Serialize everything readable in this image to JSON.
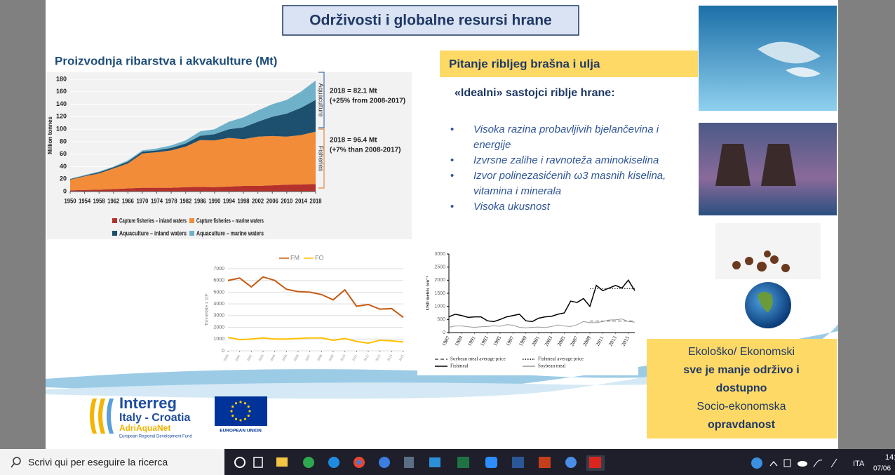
{
  "slide": {
    "title": "Održivosti i globalne resursi hrane",
    "left_heading": "Proizvodnja ribarstva i akvakulture (Mt)",
    "right_heading": "Pitanje ribljeg brašna i ulja",
    "subheading": "«Idealni» sastojci riblje hrane:",
    "bullets": [
      "Visoka razina probavljivih bjelančevina i energije",
      "Izvrsne zalihe i ravnoteža aminokiselina",
      "Izvor polinezasićenih ω3 masnih kiselina, vitamina i minerala",
      "Visoka ukusnost"
    ],
    "conclusion": [
      {
        "text": "Ekološko/ Ekonomski",
        "bold": false
      },
      {
        "text": "sve je manje održivo i",
        "bold": true
      },
      {
        "text": "dostupno",
        "bold": true
      },
      {
        "text": "Socio-ekonomska",
        "bold": false
      },
      {
        "text": "opravdanost",
        "bold": true
      }
    ],
    "logos": {
      "interreg": "Interreg",
      "program": "Italy - Croatia",
      "project": "AdriAquaNet",
      "fund": "European Regional Development Fund",
      "eu": "EUROPEAN UNION"
    }
  },
  "charts": [
    {
      "type": "stacked-area",
      "ylabel": "Million tonnes",
      "x": [
        1950,
        1954,
        1958,
        1962,
        1966,
        1970,
        1974,
        1978,
        1982,
        1986,
        1990,
        1994,
        1998,
        2002,
        2006,
        2010,
        2014,
        2018
      ],
      "xlim": [
        1950,
        2018
      ],
      "xticks": [
        1950,
        1954,
        1958,
        1962,
        1966,
        1970,
        1974,
        1978,
        1982,
        1986,
        1990,
        1994,
        1998,
        2002,
        2006,
        2010,
        2014,
        2018
      ],
      "ylim": [
        0,
        180
      ],
      "yticks": [
        0,
        20,
        40,
        60,
        80,
        100,
        120,
        140,
        160,
        180
      ],
      "grid": true,
      "series": [
        {
          "name": "Capture fisheries – inland waters",
          "color": "#b5312b",
          "values": [
            2,
            2.5,
            3,
            4,
            5,
            6,
            6,
            6,
            7,
            7.5,
            7,
            8,
            9,
            9,
            10,
            11,
            11.5,
            12
          ]
        },
        {
          "name": "Capture fisheries – marine waters",
          "color": "#f28c38",
          "values": [
            17,
            22,
            26,
            33,
            40,
            55,
            57,
            60,
            65,
            75,
            75,
            78,
            75,
            79,
            79,
            77,
            79,
            84
          ]
        },
        {
          "name": "Aquaculture – inland waters",
          "color": "#1d4f6e",
          "values": [
            1,
            1,
            2,
            2,
            3,
            3,
            3,
            4,
            5,
            7,
            10,
            14,
            19,
            24,
            31,
            37,
            44,
            51
          ]
        },
        {
          "name": "Aquaculture – marine waters",
          "color": "#6fb1c9",
          "values": [
            0.5,
            1,
            1,
            1,
            2,
            2,
            3,
            4,
            5,
            7,
            8,
            12,
            16,
            18,
            20,
            22,
            26,
            31
          ]
        }
      ],
      "annotations": [
        {
          "group": "Aquaculture",
          "color": "#3f6fb5",
          "lines": [
            "2018 = 82.1 Mt",
            "(+25% from 2008-2017)"
          ]
        },
        {
          "group": "Fisheries",
          "color": "#e8873a",
          "lines": [
            "2018 = 96.4 Mt",
            "(+7% than 2008-2017)"
          ]
        }
      ]
    },
    {
      "type": "line",
      "ylabel": "Tonnellate x 10³",
      "x": [
        2000,
        2001,
        2002,
        2003,
        2004,
        2005,
        2006,
        2007,
        2008,
        2009,
        2010,
        2011,
        2012,
        2013,
        2014,
        2015
      ],
      "xlim": [
        2000,
        2015
      ],
      "xticks": [
        2000,
        2001,
        2002,
        2003,
        2004,
        2005,
        2006,
        2007,
        2008,
        2009,
        2010,
        2011,
        2012,
        2013,
        2014,
        2015
      ],
      "ylim": [
        0,
        7000
      ],
      "yticks": [
        0,
        1000,
        2000,
        3000,
        4000,
        5000,
        6000,
        7000
      ],
      "grid": true,
      "legend": "top",
      "series": [
        {
          "name": "FM",
          "color": "#c55a11",
          "dash": "solid",
          "values": [
            6000,
            6200,
            5450,
            6300,
            6000,
            5250,
            5050,
            5000,
            4800,
            4350,
            5200,
            3800,
            3950,
            3550,
            3600,
            2850
          ]
        },
        {
          "name": "FO",
          "color": "#ffc000",
          "dash": "solid",
          "values": [
            1150,
            950,
            1000,
            1100,
            1000,
            1000,
            1050,
            1100,
            1100,
            900,
            1050,
            800,
            650,
            900,
            850,
            750
          ]
        }
      ]
    },
    {
      "type": "line",
      "ylabel": "USD metric ton⁻¹",
      "x": [
        1987,
        1988,
        1989,
        1990,
        1991,
        1992,
        1993,
        1994,
        1995,
        1996,
        1997,
        1998,
        1999,
        2000,
        2001,
        2002,
        2003,
        2004,
        2005,
        2006,
        2007,
        2008,
        2009,
        2010,
        2011,
        2012,
        2013,
        2014,
        2015,
        2016
      ],
      "xlim": [
        1987,
        2016
      ],
      "xticks": [
        1987,
        1989,
        1991,
        1993,
        1995,
        1997,
        1999,
        2001,
        2003,
        2005,
        2007,
        2009,
        2011,
        2013,
        2015
      ],
      "ylim": [
        0,
        3000
      ],
      "yticks": [
        0,
        500,
        1000,
        1500,
        2000,
        2500,
        3000
      ],
      "grid": false,
      "legend": "bottom",
      "series": [
        {
          "name": "Soybean meal average price",
          "color": "#555555",
          "dash": "dashed",
          "values": [
            null,
            null,
            null,
            null,
            null,
            null,
            null,
            null,
            null,
            null,
            null,
            null,
            null,
            null,
            null,
            null,
            null,
            null,
            null,
            null,
            null,
            null,
            440,
            440,
            440,
            440,
            440,
            440,
            440,
            440
          ]
        },
        {
          "name": "Fishmeal average price",
          "color": "#000000",
          "dash": "dotted",
          "values": [
            null,
            null,
            null,
            null,
            null,
            null,
            null,
            null,
            null,
            null,
            null,
            null,
            null,
            null,
            null,
            null,
            null,
            null,
            null,
            null,
            null,
            null,
            1680,
            1680,
            1680,
            1680,
            1680,
            1680,
            1680,
            1680
          ]
        },
        {
          "name": "Fishmeal",
          "color": "#000000",
          "dash": "solid",
          "values": [
            600,
            700,
            650,
            580,
            600,
            600,
            450,
            420,
            500,
            600,
            650,
            700,
            450,
            420,
            550,
            600,
            620,
            700,
            750,
            1200,
            1150,
            1300,
            1000,
            1800,
            1600,
            1700,
            1800,
            1700,
            2000,
            1600
          ]
        },
        {
          "name": "Soybean meal",
          "color": "#999999",
          "dash": "solid",
          "values": [
            200,
            250,
            250,
            220,
            200,
            220,
            230,
            260,
            240,
            300,
            280,
            200,
            180,
            200,
            210,
            190,
            230,
            290,
            250,
            230,
            300,
            420,
            380,
            380,
            420,
            480,
            490,
            520,
            420,
            400
          ]
        }
      ]
    }
  ],
  "taskbar": {
    "search": "Scrivi qui per eseguire la ricerca",
    "language": "ITA",
    "time": "14:",
    "date": "07/06"
  }
}
